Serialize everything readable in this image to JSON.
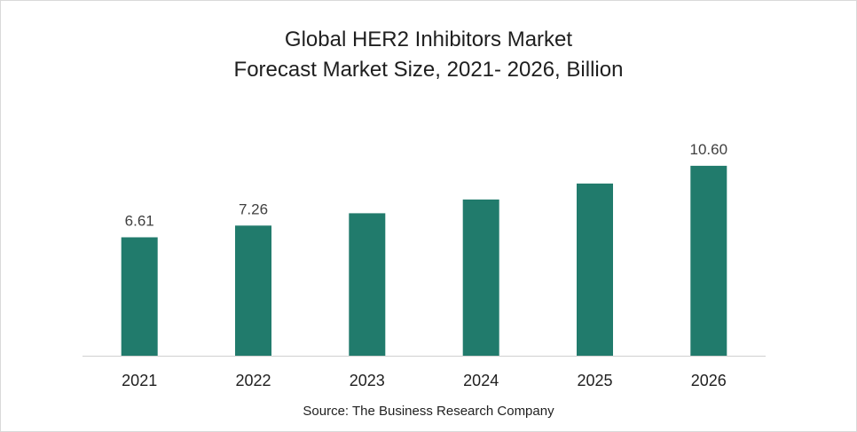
{
  "chart_data": {
    "type": "bar",
    "title": "Global HER2 Inhibitors Market",
    "subtitle": "Forecast Market Size, 2021- 2026, Billion",
    "categories": [
      "2021",
      "2022",
      "2023",
      "2024",
      "2025",
      "2026"
    ],
    "values": [
      6.61,
      7.26,
      7.95,
      8.72,
      9.61,
      10.6
    ],
    "data_labels": [
      "6.61",
      "7.26",
      "",
      "",
      "",
      "10.60"
    ],
    "xlabel": "",
    "ylabel": "",
    "ylim": [
      0,
      12
    ],
    "grid": false,
    "legend": "none",
    "bar_color": "#217b6c",
    "axis_color": "#d0d0d0"
  },
  "source": "Source: The Business Research Company"
}
